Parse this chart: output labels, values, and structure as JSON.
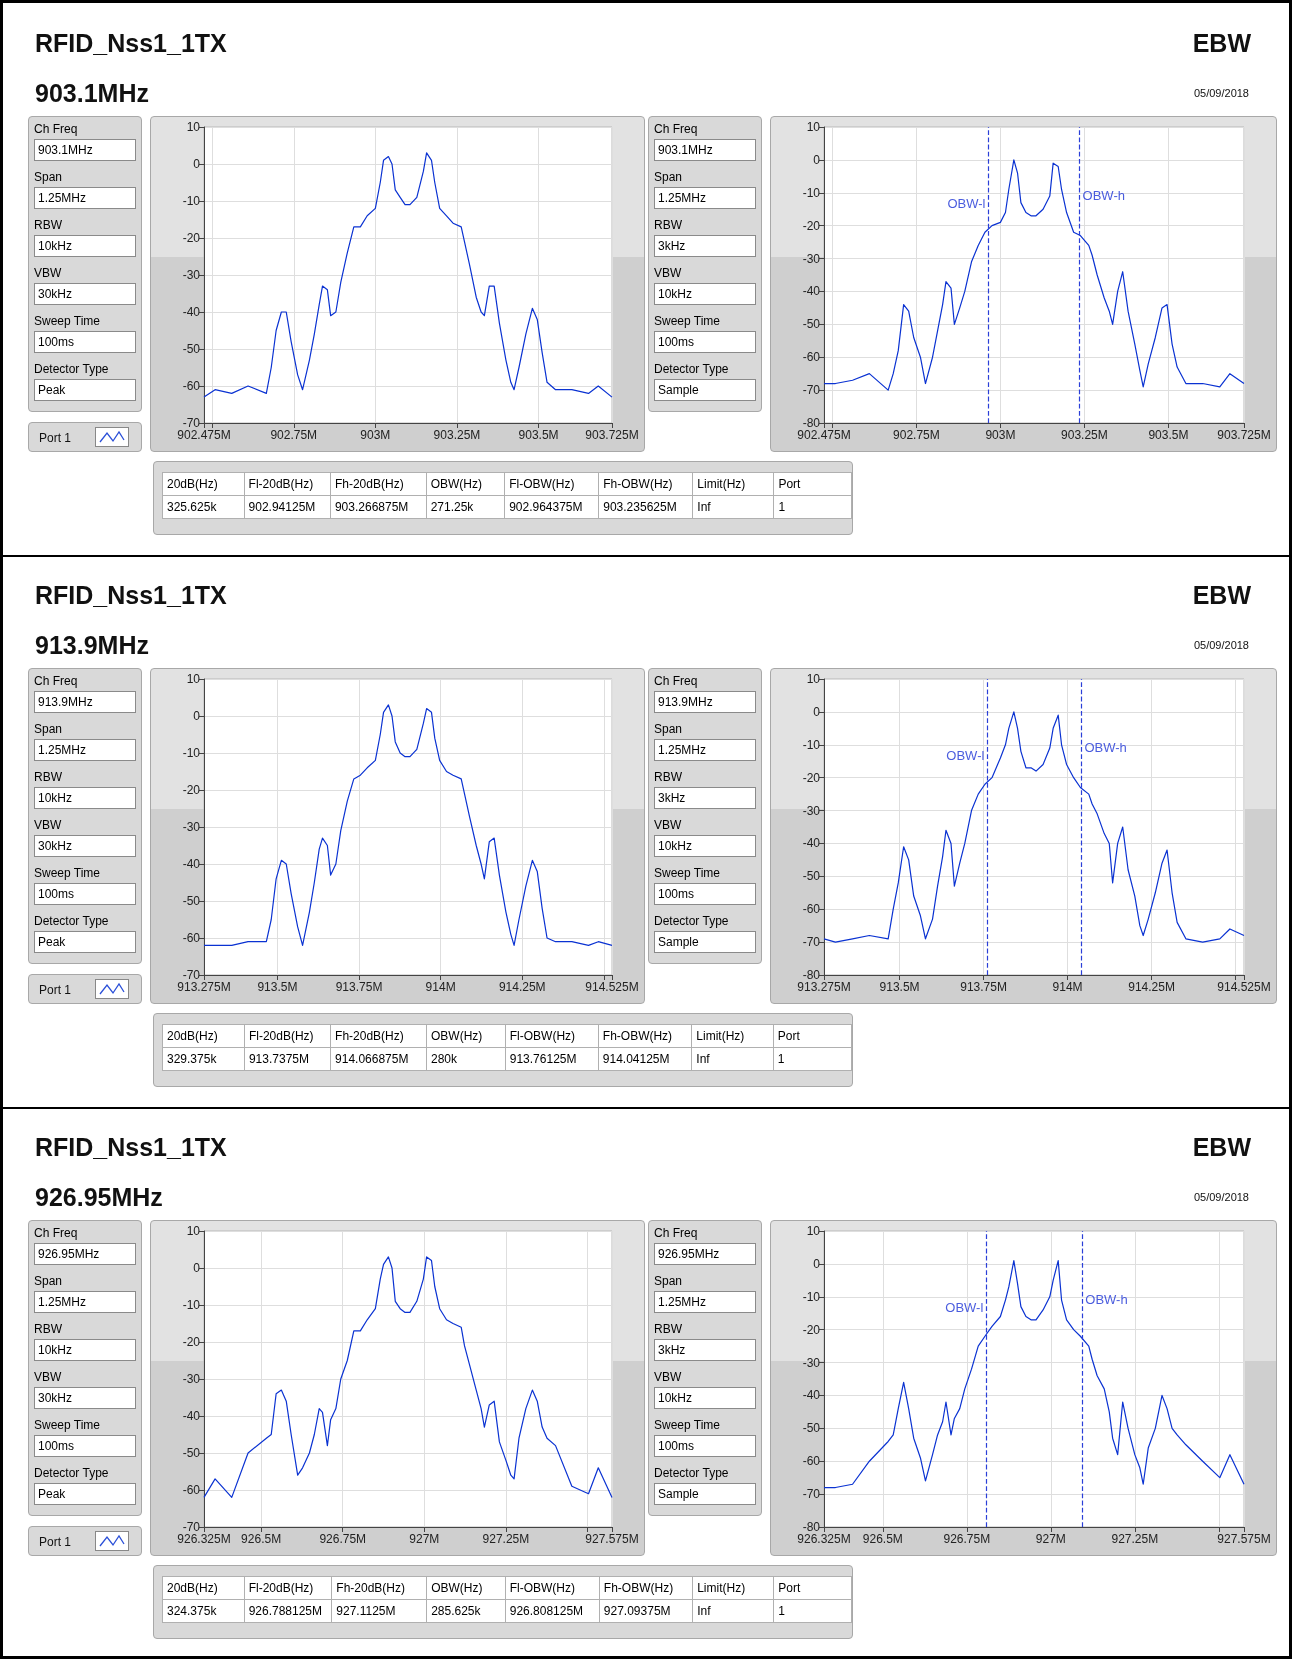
{
  "chart_data": [
    {
      "type": "other",
      "title": "RFID_Nss1_1TX",
      "subtitle": "903.1MHz",
      "annotations": [
        "EBW",
        "05/09/2018"
      ]
    },
    {
      "type": "other",
      "annotations": [
        "Ch Freq",
        "903.1MHz",
        "Span",
        "1.25MHz",
        "RBW",
        "10kHz",
        "VBW",
        "30kHz",
        "Sweep Time",
        "100ms",
        "Detector Type",
        "Peak",
        "Port 1"
      ]
    },
    {
      "type": "line",
      "grid": true,
      "marker": "none",
      "xlim": [
        902.475,
        903.725
      ],
      "ylim": [
        -70,
        10
      ],
      "xticks": [
        {
          "value": 902.475,
          "label": "902.475M"
        },
        {
          "value": 902.5,
          "label": null
        },
        {
          "value": 902.75,
          "label": "902.75M"
        },
        {
          "value": 903,
          "label": "903M"
        },
        {
          "value": 903.25,
          "label": "903.25M"
        },
        {
          "value": 903.5,
          "label": "903.5M"
        },
        {
          "value": 903.725,
          "label": "903.725M"
        }
      ],
      "yticks": [
        -70,
        -60,
        -50,
        -40,
        -30,
        -20,
        -10,
        0,
        10
      ],
      "x": [
        902.475,
        902.509,
        902.56,
        902.61,
        902.666,
        902.681,
        902.696,
        902.712,
        902.727,
        902.742,
        902.762,
        902.777,
        902.798,
        902.813,
        902.828,
        902.838,
        902.853,
        902.863,
        902.879,
        902.894,
        902.914,
        902.934,
        902.954,
        902.975,
        903,
        903.015,
        903.025,
        903.04,
        903.051,
        903.061,
        903.076,
        903.091,
        903.106,
        903.127,
        903.147,
        903.157,
        903.172,
        903.182,
        903.197,
        903.218,
        903.238,
        903.263,
        903.273,
        903.288,
        903.309,
        903.324,
        903.334,
        903.349,
        903.364,
        903.38,
        903.4,
        903.415,
        903.425,
        903.44,
        903.461,
        903.481,
        903.496,
        903.511,
        903.526,
        903.552,
        903.602,
        903.653,
        903.683,
        903.725
      ],
      "series": [
        {
          "color": "#0a32d2",
          "values": [
            -63,
            -61,
            -62,
            -60,
            -62,
            -55,
            -45,
            -40,
            -40,
            -48,
            -57,
            -61,
            -53,
            -46,
            -38,
            -33,
            -34,
            -41,
            -40,
            -32,
            -24,
            -17,
            -17,
            -14,
            -12,
            -5,
            1,
            2,
            0,
            -7,
            -9,
            -11,
            -11,
            -9,
            -2,
            3,
            1,
            -5,
            -12,
            -14,
            -16,
            -17,
            -21,
            -27,
            -36,
            -40,
            -41,
            -33,
            -33,
            -43,
            -53,
            -59,
            -61,
            -55,
            -46,
            -39,
            -42,
            -51,
            -59,
            -61,
            -61,
            -62,
            -60,
            -63
          ]
        }
      ]
    },
    {
      "type": "other",
      "annotations": [
        "Ch Freq",
        "903.1MHz",
        "Span",
        "1.25MHz",
        "RBW",
        "3kHz",
        "VBW",
        "10kHz",
        "Sweep Time",
        "100ms",
        "Detector Type",
        "Sample"
      ]
    },
    {
      "type": "line",
      "grid": true,
      "marker": "none",
      "xlim": [
        902.475,
        903.725
      ],
      "ylim": [
        -80,
        10
      ],
      "xticks": [
        {
          "value": 902.475,
          "label": "902.475M"
        },
        {
          "value": 902.5,
          "label": null
        },
        {
          "value": 902.75,
          "label": "902.75M"
        },
        {
          "value": 903,
          "label": "903M"
        },
        {
          "value": 903.25,
          "label": "903.25M"
        },
        {
          "value": 903.5,
          "label": "903.5M"
        },
        {
          "value": 903.725,
          "label": "903.725M"
        }
      ],
      "yticks": [
        -80,
        -70,
        -60,
        -50,
        -40,
        -30,
        -20,
        -10,
        0,
        10
      ],
      "x": [
        902.475,
        902.509,
        902.56,
        902.61,
        902.666,
        902.681,
        902.696,
        902.712,
        902.727,
        902.742,
        902.762,
        902.777,
        902.798,
        902.813,
        902.828,
        902.838,
        902.853,
        902.863,
        902.879,
        902.894,
        902.914,
        902.934,
        902.954,
        902.975,
        903,
        903.015,
        903.025,
        903.04,
        903.051,
        903.061,
        903.076,
        903.091,
        903.106,
        903.127,
        903.147,
        903.157,
        903.172,
        903.182,
        903.197,
        903.218,
        903.238,
        903.263,
        903.273,
        903.288,
        903.309,
        903.324,
        903.334,
        903.349,
        903.364,
        903.38,
        903.4,
        903.415,
        903.425,
        903.44,
        903.461,
        903.481,
        903.496,
        903.511,
        903.526,
        903.552,
        903.602,
        903.653,
        903.683,
        903.725
      ],
      "series": [
        {
          "color": "#0a32d2",
          "values": [
            -68,
            -68,
            -67,
            -65,
            -70,
            -65,
            -58,
            -44,
            -46,
            -54,
            -60,
            -68,
            -60,
            -52,
            -44,
            -37,
            -39,
            -50,
            -45,
            -40,
            -31,
            -26,
            -22,
            -20,
            -19,
            -16,
            -9,
            0,
            -4,
            -13,
            -16,
            -17,
            -17,
            -15,
            -11,
            -1,
            -2,
            -9,
            -16,
            -22,
            -23,
            -26,
            -29,
            -35,
            -42,
            -46,
            -50,
            -40,
            -34,
            -46,
            -56,
            -64,
            -69,
            -62,
            -54,
            -45,
            -44,
            -56,
            -63,
            -68,
            -68,
            -69,
            -65,
            -68
          ]
        }
      ],
      "ref_lines": [
        {
          "axis": "x",
          "value": 902.964375,
          "label": "OBW-l",
          "color": "#2a3fd8",
          "line_style": "dashed"
        },
        {
          "axis": "x",
          "value": 903.235625,
          "label": "OBW-h",
          "color": "#2a3fd8",
          "line_style": "dashed"
        }
      ]
    },
    {
      "type": "other",
      "annotations": [
        "20dB(Hz)",
        "Fl-20dB(Hz)",
        "Fh-20dB(Hz)",
        "OBW(Hz)",
        "Fl-OBW(Hz)",
        "Fh-OBW(Hz)",
        "Limit(Hz)",
        "Port",
        "325.625k",
        "902.94125M",
        "903.266875M",
        "271.25k",
        "902.964375M",
        "903.235625M",
        "Inf",
        "1"
      ]
    },
    {
      "type": "other",
      "title": "RFID_Nss1_1TX",
      "subtitle": "913.9MHz",
      "annotations": [
        "EBW",
        "05/09/2018"
      ]
    },
    {
      "type": "other",
      "annotations": [
        "Ch Freq",
        "913.9MHz",
        "Span",
        "1.25MHz",
        "RBW",
        "10kHz",
        "VBW",
        "30kHz",
        "Sweep Time",
        "100ms",
        "Detector Type",
        "Peak",
        "Port 1"
      ]
    },
    {
      "type": "line",
      "grid": true,
      "marker": "none",
      "xlim": [
        913.275,
        914.525
      ],
      "ylim": [
        -70,
        10
      ],
      "xticks": [
        {
          "value": 913.275,
          "label": "913.275M"
        },
        {
          "value": 913.5,
          "label": "913.5M"
        },
        {
          "value": 913.75,
          "label": "913.75M"
        },
        {
          "value": 914,
          "label": "914M"
        },
        {
          "value": 914.25,
          "label": "914.25M"
        },
        {
          "value": 914.5,
          "label": null
        },
        {
          "value": 914.525,
          "label": "914.525M"
        }
      ],
      "yticks": [
        -70,
        -60,
        -50,
        -40,
        -30,
        -20,
        -10,
        0,
        10
      ],
      "x": [
        913.275,
        913.309,
        913.36,
        913.41,
        913.466,
        913.481,
        913.496,
        913.512,
        913.527,
        913.542,
        913.562,
        913.577,
        913.598,
        913.613,
        913.628,
        913.638,
        913.653,
        913.663,
        913.679,
        913.694,
        913.714,
        913.734,
        913.754,
        913.775,
        913.8,
        913.815,
        913.825,
        913.84,
        913.851,
        913.861,
        913.876,
        913.891,
        913.906,
        913.927,
        913.947,
        913.957,
        913.972,
        913.982,
        913.997,
        914.018,
        914.038,
        914.063,
        914.073,
        914.088,
        914.109,
        914.124,
        914.134,
        914.149,
        914.164,
        914.18,
        914.2,
        914.215,
        914.225,
        914.24,
        914.261,
        914.281,
        914.296,
        914.311,
        914.326,
        914.352,
        914.402,
        914.453,
        914.483,
        914.525
      ],
      "series": [
        {
          "color": "#0a32d2",
          "values": [
            -62,
            -62,
            -62,
            -61,
            -61,
            -55,
            -44,
            -39,
            -40,
            -48,
            -57,
            -62,
            -53,
            -45,
            -36,
            -33,
            -35,
            -43,
            -40,
            -31,
            -23,
            -17,
            -16,
            -14,
            -12,
            -5,
            1,
            3,
            0,
            -7,
            -10,
            -11,
            -11,
            -9,
            -2,
            2,
            1,
            -6,
            -12,
            -15,
            -16,
            -17,
            -21,
            -27,
            -35,
            -40,
            -44,
            -34,
            -33,
            -43,
            -53,
            -59,
            -62,
            -55,
            -46,
            -39,
            -42,
            -52,
            -60,
            -61,
            -61,
            -62,
            -61,
            -62
          ]
        }
      ]
    },
    {
      "type": "other",
      "annotations": [
        "Ch Freq",
        "913.9MHz",
        "Span",
        "1.25MHz",
        "RBW",
        "3kHz",
        "VBW",
        "10kHz",
        "Sweep Time",
        "100ms",
        "Detector Type",
        "Sample"
      ]
    },
    {
      "type": "line",
      "grid": true,
      "marker": "none",
      "xlim": [
        913.275,
        914.525
      ],
      "ylim": [
        -80,
        10
      ],
      "xticks": [
        {
          "value": 913.275,
          "label": "913.275M"
        },
        {
          "value": 913.5,
          "label": "913.5M"
        },
        {
          "value": 913.75,
          "label": "913.75M"
        },
        {
          "value": 914,
          "label": "914M"
        },
        {
          "value": 914.25,
          "label": "914.25M"
        },
        {
          "value": 914.5,
          "label": null
        },
        {
          "value": 914.525,
          "label": "914.525M"
        }
      ],
      "yticks": [
        -80,
        -70,
        -60,
        -50,
        -40,
        -30,
        -20,
        -10,
        0,
        10
      ],
      "x": [
        913.275,
        913.309,
        913.36,
        913.41,
        913.466,
        913.481,
        913.496,
        913.512,
        913.527,
        913.542,
        913.562,
        913.577,
        913.598,
        913.613,
        913.628,
        913.638,
        913.653,
        913.663,
        913.679,
        913.694,
        913.714,
        913.734,
        913.754,
        913.775,
        913.8,
        913.815,
        913.825,
        913.84,
        913.851,
        913.861,
        913.876,
        913.891,
        913.906,
        913.927,
        913.947,
        913.957,
        913.972,
        913.982,
        913.997,
        914.018,
        914.038,
        914.063,
        914.073,
        914.088,
        914.109,
        914.124,
        914.134,
        914.149,
        914.164,
        914.18,
        914.2,
        914.215,
        914.225,
        914.24,
        914.261,
        914.281,
        914.296,
        914.311,
        914.326,
        914.352,
        914.402,
        914.453,
        914.483,
        914.525
      ],
      "series": [
        {
          "color": "#0a32d2",
          "values": [
            -69,
            -70,
            -69,
            -68,
            -69,
            -60,
            -52,
            -41,
            -45,
            -56,
            -62,
            -69,
            -63,
            -53,
            -44,
            -36,
            -40,
            -53,
            -46,
            -40,
            -30,
            -25,
            -22,
            -20,
            -14,
            -10,
            -5,
            0,
            -5,
            -12,
            -17,
            -17,
            -18,
            -16,
            -11,
            -5,
            -1,
            -10,
            -16,
            -20,
            -23,
            -25,
            -28,
            -31,
            -37,
            -40,
            -52,
            -40,
            -35,
            -48,
            -56,
            -65,
            -68,
            -63,
            -55,
            -46,
            -42,
            -55,
            -64,
            -69,
            -70,
            -69,
            -66,
            -68
          ]
        }
      ],
      "ref_lines": [
        {
          "axis": "x",
          "value": 913.76125,
          "label": "OBW-l",
          "color": "#2a3fd8",
          "line_style": "dashed"
        },
        {
          "axis": "x",
          "value": 914.04125,
          "label": "OBW-h",
          "color": "#2a3fd8",
          "line_style": "dashed"
        }
      ]
    },
    {
      "type": "other",
      "annotations": [
        "20dB(Hz)",
        "Fl-20dB(Hz)",
        "Fh-20dB(Hz)",
        "OBW(Hz)",
        "Fl-OBW(Hz)",
        "Fh-OBW(Hz)",
        "Limit(Hz)",
        "Port",
        "329.375k",
        "913.7375M",
        "914.066875M",
        "280k",
        "913.76125M",
        "914.04125M",
        "Inf",
        "1"
      ]
    },
    {
      "type": "other",
      "title": "RFID_Nss1_1TX",
      "subtitle": "926.95MHz",
      "annotations": [
        "EBW",
        "05/09/2018"
      ]
    },
    {
      "type": "other",
      "annotations": [
        "Ch Freq",
        "926.95MHz",
        "Span",
        "1.25MHz",
        "RBW",
        "10kHz",
        "VBW",
        "30kHz",
        "Sweep Time",
        "100ms",
        "Detector Type",
        "Peak",
        "Port 1"
      ]
    },
    {
      "type": "line",
      "grid": true,
      "marker": "none",
      "xlim": [
        926.325,
        927.575
      ],
      "ylim": [
        -70,
        10
      ],
      "xticks": [
        {
          "value": 926.325,
          "label": "926.325M"
        },
        {
          "value": 926.5,
          "label": "926.5M"
        },
        {
          "value": 926.75,
          "label": "926.75M"
        },
        {
          "value": 927,
          "label": "927M"
        },
        {
          "value": 927.25,
          "label": "927.25M"
        },
        {
          "value": 927.5,
          "label": null
        },
        {
          "value": 927.575,
          "label": "927.575M"
        }
      ],
      "yticks": [
        -70,
        -60,
        -50,
        -40,
        -30,
        -20,
        -10,
        0,
        10
      ],
      "x": [
        926.325,
        926.359,
        926.41,
        926.46,
        926.516,
        926.531,
        926.546,
        926.562,
        926.577,
        926.592,
        926.612,
        926.627,
        926.648,
        926.663,
        926.678,
        926.688,
        926.703,
        926.713,
        926.729,
        926.744,
        926.764,
        926.784,
        926.804,
        926.825,
        926.85,
        926.865,
        926.875,
        926.89,
        926.901,
        926.911,
        926.926,
        926.941,
        926.956,
        926.977,
        926.997,
        927.007,
        927.022,
        927.032,
        927.047,
        927.068,
        927.088,
        927.113,
        927.123,
        927.138,
        927.159,
        927.174,
        927.184,
        927.199,
        927.214,
        927.23,
        927.25,
        927.265,
        927.275,
        927.29,
        927.311,
        927.331,
        927.346,
        927.361,
        927.376,
        927.402,
        927.452,
        927.503,
        927.533,
        927.575
      ],
      "series": [
        {
          "color": "#0a32d2",
          "values": [
            -62,
            -57,
            -62,
            -50,
            -46,
            -45,
            -34,
            -33,
            -36,
            -45,
            -56,
            -54,
            -50,
            -45,
            -38,
            -39,
            -48,
            -41,
            -38,
            -30,
            -25,
            -17,
            -17,
            -14,
            -11,
            -3,
            1,
            3,
            0,
            -9,
            -11,
            -12,
            -12,
            -9,
            -3,
            3,
            2,
            -5,
            -11,
            -14,
            -15,
            -16,
            -21,
            -26,
            -33,
            -38,
            -43,
            -37,
            -36,
            -47,
            -52,
            -56,
            -57,
            -46,
            -38,
            -33,
            -36,
            -43,
            -46,
            -48,
            -59,
            -61,
            -54,
            -62
          ]
        }
      ]
    },
    {
      "type": "other",
      "annotations": [
        "Ch Freq",
        "926.95MHz",
        "Span",
        "1.25MHz",
        "RBW",
        "3kHz",
        "VBW",
        "10kHz",
        "Sweep Time",
        "100ms",
        "Detector Type",
        "Sample"
      ]
    },
    {
      "type": "line",
      "grid": true,
      "marker": "none",
      "xlim": [
        926.325,
        927.575
      ],
      "ylim": [
        -80,
        10
      ],
      "xticks": [
        {
          "value": 926.325,
          "label": "926.325M"
        },
        {
          "value": 926.5,
          "label": "926.5M"
        },
        {
          "value": 926.75,
          "label": "926.75M"
        },
        {
          "value": 927,
          "label": "927M"
        },
        {
          "value": 927.25,
          "label": "927.25M"
        },
        {
          "value": 927.5,
          "label": null
        },
        {
          "value": 927.575,
          "label": "927.575M"
        }
      ],
      "yticks": [
        -80,
        -70,
        -60,
        -50,
        -40,
        -30,
        -20,
        -10,
        0,
        10
      ],
      "x": [
        926.325,
        926.359,
        926.41,
        926.46,
        926.516,
        926.531,
        926.546,
        926.562,
        926.577,
        926.592,
        926.612,
        926.627,
        926.648,
        926.663,
        926.678,
        926.688,
        926.703,
        926.713,
        926.729,
        926.744,
        926.764,
        926.784,
        926.804,
        926.825,
        926.85,
        926.865,
        926.875,
        926.89,
        926.901,
        926.911,
        926.926,
        926.941,
        926.956,
        926.977,
        926.997,
        927.007,
        927.022,
        927.032,
        927.047,
        927.068,
        927.088,
        927.113,
        927.123,
        927.138,
        927.159,
        927.174,
        927.184,
        927.199,
        927.214,
        927.23,
        927.25,
        927.265,
        927.275,
        927.29,
        927.311,
        927.331,
        927.346,
        927.361,
        927.376,
        927.402,
        927.452,
        927.503,
        927.533,
        927.575
      ],
      "series": [
        {
          "color": "#0a32d2",
          "values": [
            -68,
            -68,
            -67,
            -60,
            -54,
            -52,
            -44,
            -36,
            -44,
            -53,
            -59,
            -66,
            -58,
            -52,
            -48,
            -42,
            -52,
            -47,
            -44,
            -38,
            -32,
            -25,
            -22,
            -19,
            -16,
            -11,
            -7,
            1,
            -6,
            -13,
            -16,
            -17,
            -17,
            -14,
            -10,
            -5,
            1,
            -11,
            -17,
            -20,
            -22,
            -25,
            -29,
            -34,
            -38,
            -45,
            -53,
            -58,
            -42,
            -50,
            -58,
            -62,
            -67,
            -56,
            -50,
            -40,
            -44,
            -50,
            -52,
            -55,
            -60,
            -65,
            -58,
            -67
          ]
        }
      ],
      "ref_lines": [
        {
          "axis": "x",
          "value": 926.808125,
          "label": "OBW-l",
          "color": "#2a3fd8",
          "line_style": "dashed"
        },
        {
          "axis": "x",
          "value": 927.09375,
          "label": "OBW-h",
          "color": "#2a3fd8",
          "line_style": "dashed"
        }
      ]
    },
    {
      "type": "other",
      "annotations": [
        "20dB(Hz)",
        "Fl-20dB(Hz)",
        "Fh-20dB(Hz)",
        "OBW(Hz)",
        "Fl-OBW(Hz)",
        "Fh-OBW(Hz)",
        "Limit(Hz)",
        "Port",
        "324.375k",
        "926.788125M",
        "927.1125M",
        "285.625k",
        "926.808125M",
        "927.09375M",
        "Inf",
        "1"
      ]
    }
  ]
}
